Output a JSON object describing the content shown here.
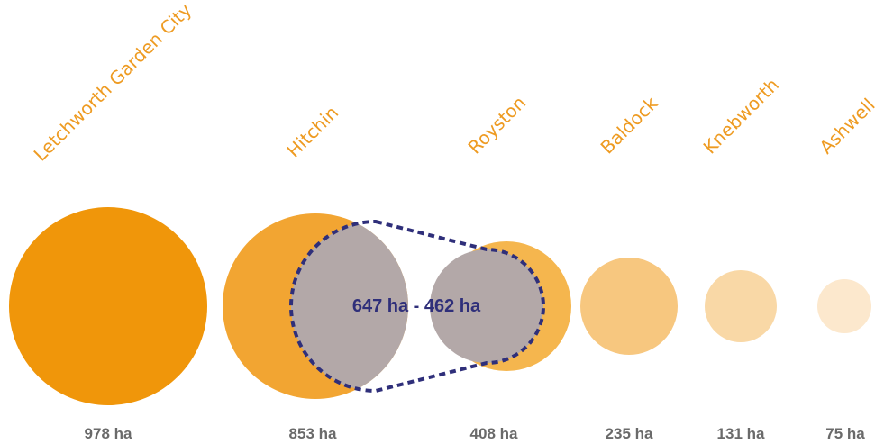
{
  "towns": [
    {
      "name": "Letchworth Garden City",
      "area_label": "978 ha",
      "area_ha": 978,
      "color": "#f0960a"
    },
    {
      "name": "Hitchin",
      "area_label": "853 ha",
      "area_ha": 853,
      "color": "#f2a532"
    },
    {
      "name": "Royston",
      "area_label": "408 ha",
      "area_ha": 408,
      "color": "#f5b64e"
    },
    {
      "name": "Baldock",
      "area_label": "235 ha",
      "area_ha": 235,
      "color": "#f7c77f"
    },
    {
      "name": "Knebworth",
      "area_label": "131 ha",
      "area_ha": 131,
      "color": "#f9d8a6"
    },
    {
      "name": "Ashwell",
      "area_label": "75 ha",
      "area_ha": 75,
      "color": "#fce8cd"
    }
  ],
  "range_overlay": {
    "label": "647 ha - 462 ha",
    "fill_color": "#b3a8a8",
    "outline_color": "#2f2f7a"
  }
}
